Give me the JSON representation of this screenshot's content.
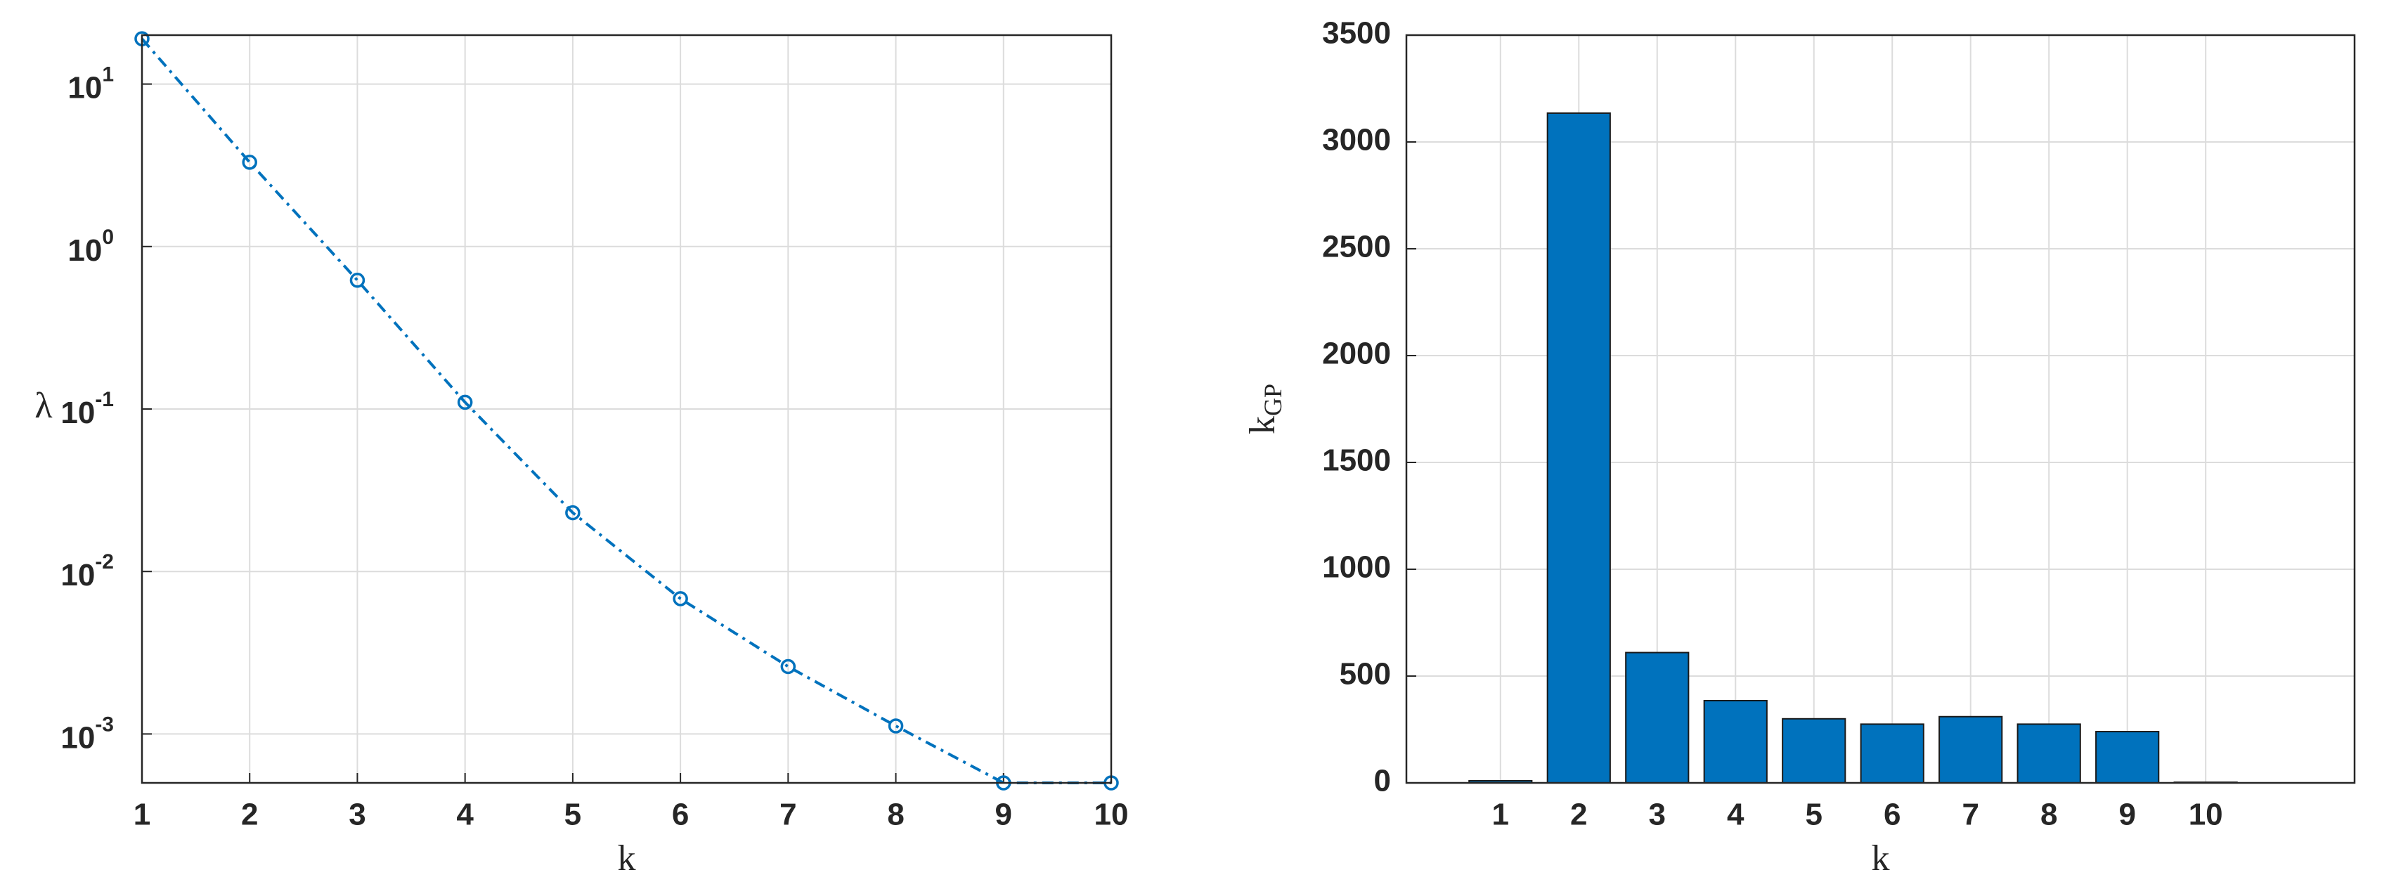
{
  "chart_data": [
    {
      "type": "line",
      "xlabel": "k",
      "ylabel": "λ",
      "x": [
        1,
        2,
        3,
        4,
        5,
        6,
        7,
        8,
        9,
        10
      ],
      "values": [
        19,
        3.3,
        0.62,
        0.11,
        0.023,
        0.0068,
        0.0026,
        0.00112,
        0.0005,
        0.0005
      ],
      "color": "#0072bd",
      "yscale": "log",
      "grid": true,
      "xlim": [
        1,
        10
      ],
      "xticks": [
        1,
        2,
        3,
        4,
        5,
        6,
        7,
        8,
        9,
        10
      ],
      "ylim": [
        0.0005,
        20
      ],
      "yticks": [
        {
          "value": 0.001,
          "label": "10",
          "exponent": "-3"
        },
        {
          "value": 0.01,
          "label": "10",
          "exponent": "-2"
        },
        {
          "value": 0.1,
          "label": "10",
          "exponent": "-1"
        },
        {
          "value": 1,
          "label": "10",
          "exponent": "0"
        },
        {
          "value": 10,
          "label": "10",
          "exponent": "1"
        }
      ]
    },
    {
      "type": "bar",
      "xlabel": "k",
      "ylabel": "k",
      "ylabel_subscript": "GP",
      "categories": [
        "1",
        "2",
        "3",
        "4",
        "5",
        "6",
        "7",
        "8",
        "9",
        "10"
      ],
      "values": [
        10,
        3135,
        610,
        385,
        300,
        275,
        310,
        275,
        240,
        3
      ],
      "color": "#0072bd",
      "grid": true,
      "ylim": [
        0,
        3500
      ],
      "yticks": [
        0,
        500,
        1000,
        1500,
        2000,
        2500,
        3000,
        3500
      ]
    }
  ]
}
